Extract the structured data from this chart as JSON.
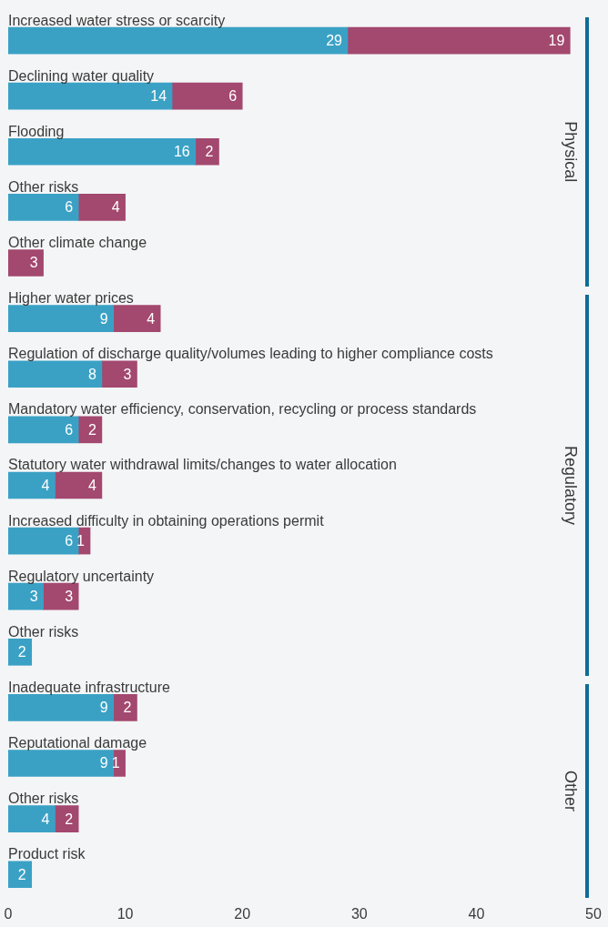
{
  "chart_data": {
    "type": "bar",
    "orientation": "horizontal",
    "stacked": true,
    "data_labels": true,
    "grid": false,
    "legend": false,
    "categories": [
      "Increased water stress or scarcity",
      "Declining water quality",
      "Flooding",
      "Other risks",
      "Other climate change",
      "Higher water prices",
      "Regulation of discharge quality/volumes leading to higher compliance costs",
      "Mandatory water efficiency, conservation, recycling or process standards",
      "Statutory water withdrawal limits/changes to water allocation",
      "Increased difficulty in obtaining operations permit",
      "Regulatory uncertainty",
      "Other risks",
      "Inadequate infrastructure",
      "Reputational damage",
      "Other risks",
      "Product risk"
    ],
    "series": [
      {
        "color": "#3aa1c5",
        "values": [
          29,
          14,
          16,
          6,
          null,
          9,
          8,
          6,
          4,
          6,
          3,
          2,
          9,
          9,
          4,
          2
        ]
      },
      {
        "color": "#a3486f",
        "values": [
          19,
          6,
          2,
          4,
          3,
          4,
          3,
          2,
          4,
          1,
          3,
          null,
          2,
          1,
          2,
          null
        ]
      }
    ],
    "xlim": [
      0,
      50
    ],
    "xticks": [
      0,
      10,
      20,
      30,
      40,
      50
    ],
    "annotations": [
      "Physical",
      "Regulatory",
      "Other"
    ]
  }
}
